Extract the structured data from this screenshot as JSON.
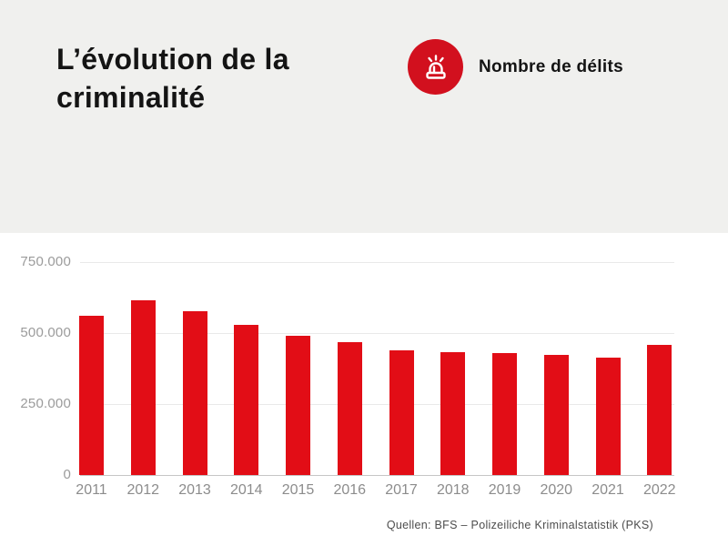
{
  "header": {
    "title": "L’évolution de la criminalité"
  },
  "legend": {
    "label": "Nombre de délits",
    "icon": "siren-icon",
    "circle_color": "#d2101e"
  },
  "chart_data": {
    "type": "bar",
    "title": "L’évolution de la criminalité",
    "series_name": "Nombre de délits",
    "categories": [
      "2011",
      "2012",
      "2013",
      "2014",
      "2015",
      "2016",
      "2017",
      "2018",
      "2019",
      "2020",
      "2021",
      "2022"
    ],
    "values": [
      561000,
      616000,
      577000,
      529000,
      489000,
      467000,
      439000,
      433000,
      431000,
      422000,
      414000,
      459000
    ],
    "xlabel": "",
    "ylabel": "",
    "ylim": [
      0,
      750000
    ],
    "yticks": [
      750000,
      500000,
      250000,
      0
    ],
    "ytick_labels": [
      "750.000",
      "500.000",
      "250.000",
      "0"
    ],
    "grid": true,
    "legend_position": "top-right",
    "bar_color": "#e20d16"
  },
  "source": {
    "text": "Quellen: BFS – Polizeiliche Kriminalstatistik (PKS)"
  },
  "colors": {
    "header_background": "#f0f0ee",
    "bar": "#e20d16",
    "icon_circle": "#d2101e",
    "title_text": "#141414",
    "axis_label": "#9b9b9b",
    "source_text": "#4d4d4d"
  }
}
